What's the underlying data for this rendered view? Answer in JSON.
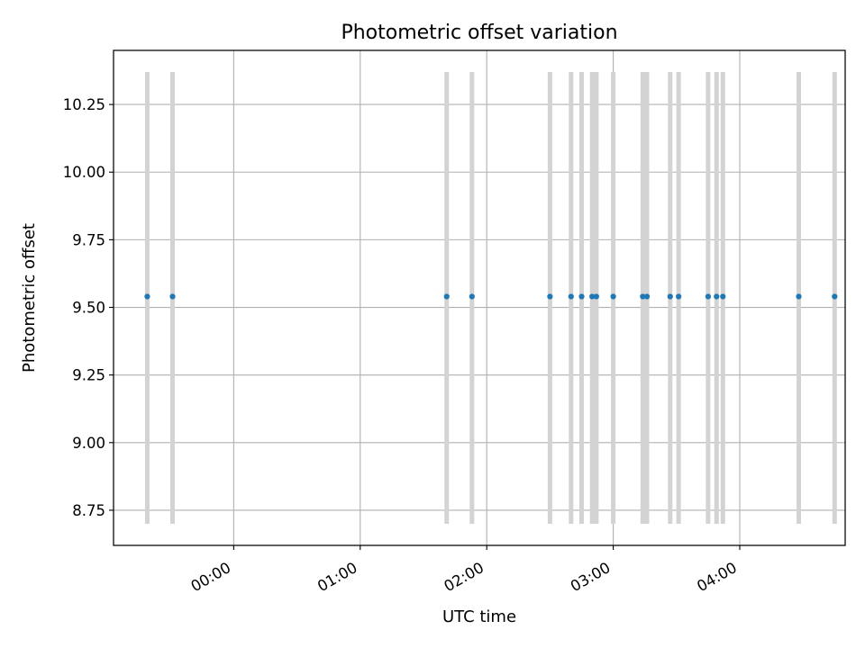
{
  "chart_data": {
    "type": "scatter",
    "title": "Photometric offset variation",
    "xlabel": "UTC time",
    "ylabel": "Photometric offset",
    "x_axis": {
      "type": "time",
      "range": [
        "23:03:00",
        "04:50:00"
      ],
      "ticks": [
        "00:00",
        "01:00",
        "02:00",
        "03:00",
        "04:00"
      ]
    },
    "y_axis": {
      "range": [
        8.62,
        10.45
      ],
      "ticks": [
        "8.75",
        "9.00",
        "9.25",
        "9.50",
        "9.75",
        "10.00",
        "10.25"
      ]
    },
    "grid": true,
    "series": [
      {
        "x": [
          "23:19",
          "23:31",
          "01:41",
          "01:53",
          "02:30",
          "02:40",
          "02:45",
          "02:50",
          "02:52",
          "03:00",
          "03:14",
          "03:16",
          "03:27",
          "03:31",
          "03:45",
          "03:49",
          "03:52",
          "04:28",
          "04:45"
        ],
        "y": [
          9.54,
          9.54,
          9.54,
          9.54,
          9.54,
          9.54,
          9.54,
          9.54,
          9.54,
          9.54,
          9.54,
          9.54,
          9.54,
          9.54,
          9.54,
          9.54,
          9.54,
          9.54,
          9.54
        ],
        "y_low": 8.7,
        "y_high": 10.37
      }
    ],
    "colors": {
      "points": "#1f77b4",
      "error_bars": "#d3d3d3",
      "grid": "#b0b0b0"
    }
  }
}
